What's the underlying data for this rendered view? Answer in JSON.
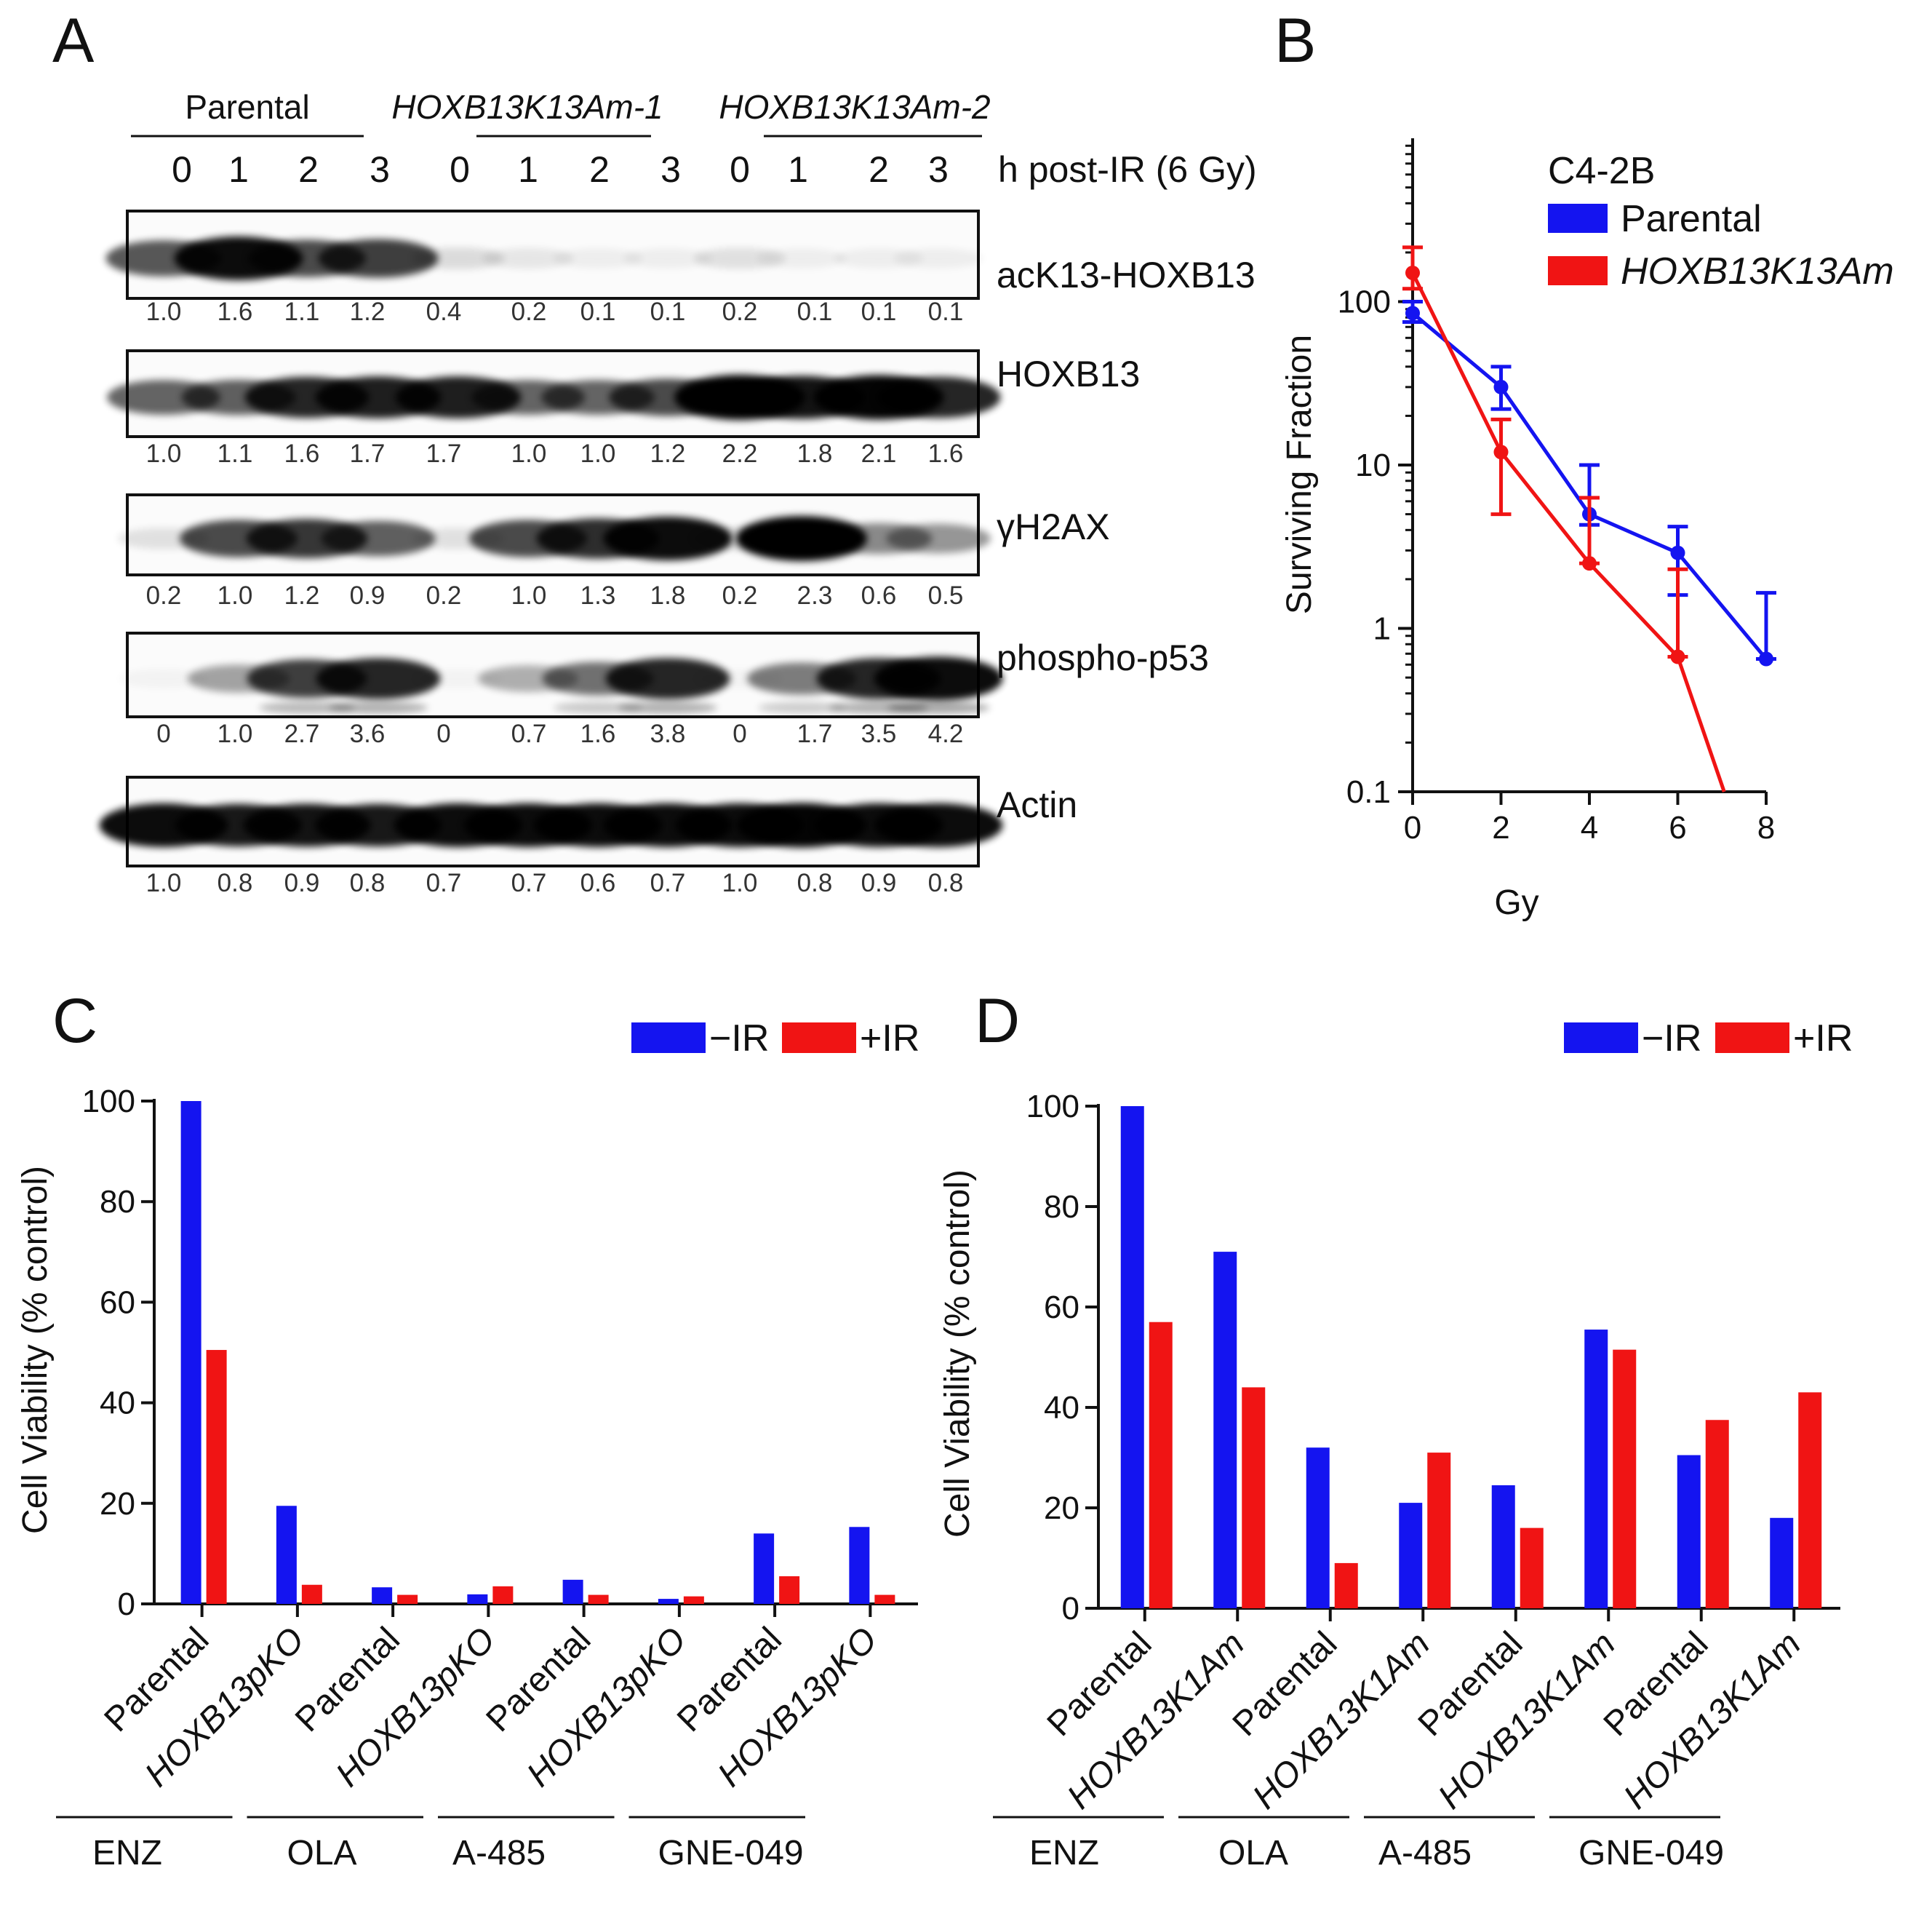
{
  "panels": {
    "a": "A",
    "b": "B",
    "c": "C",
    "d": "D"
  },
  "blot": {
    "groups": [
      "Parental",
      "HOXB13K13Am-1",
      "HOXB13K13Am-2"
    ],
    "timepoints": [
      "0",
      "1",
      "2",
      "3",
      "0",
      "1",
      "2",
      "3",
      "0",
      "1",
      "2",
      "3"
    ],
    "time_label": "h post-IR (6 Gy)",
    "rows": [
      {
        "marker": "acK13-HOXB13",
        "quant": [
          "1.0",
          "1.6",
          "1.1",
          "1.2",
          "0.4",
          "0.2",
          "0.1",
          "0.1",
          "0.2",
          "0.1",
          "0.1",
          "0.1"
        ],
        "intensity": [
          0.65,
          0.95,
          0.7,
          0.75,
          0.12,
          0.08,
          0.05,
          0.05,
          0.1,
          0.05,
          0.05,
          0.05
        ]
      },
      {
        "marker": "HOXB13",
        "quant": [
          "1.0",
          "1.1",
          "1.6",
          "1.7",
          "1.7",
          "1.0",
          "1.0",
          "1.2",
          "2.2",
          "1.8",
          "2.1",
          "1.6"
        ],
        "intensity": [
          0.6,
          0.62,
          0.85,
          0.88,
          0.88,
          0.6,
          0.6,
          0.7,
          1.0,
          0.92,
          0.98,
          0.85
        ]
      },
      {
        "marker": "γH2AX",
        "quant": [
          "0.2",
          "1.0",
          "1.2",
          "0.9",
          "0.2",
          "1.0",
          "1.3",
          "1.8",
          "0.2",
          "2.3",
          "0.6",
          "0.5"
        ],
        "intensity": [
          0.1,
          0.7,
          0.78,
          0.62,
          0.1,
          0.7,
          0.82,
          0.95,
          0.15,
          1.0,
          0.45,
          0.4
        ]
      },
      {
        "marker": "phospho-p53",
        "quant": [
          "0",
          "1.0",
          "2.7",
          "3.6",
          "0",
          "0.7",
          "1.6",
          "3.8",
          "0",
          "1.7",
          "3.5",
          "4.2"
        ],
        "intensity": [
          0.03,
          0.35,
          0.75,
          0.85,
          0.02,
          0.3,
          0.55,
          0.85,
          0.02,
          0.5,
          0.85,
          0.95
        ]
      },
      {
        "marker": "Actin",
        "quant": [
          "1.0",
          "0.8",
          "0.9",
          "0.8",
          "0.7",
          "0.7",
          "0.6",
          "0.7",
          "1.0",
          "0.8",
          "0.9",
          "0.8"
        ],
        "intensity": [
          0.95,
          0.9,
          0.92,
          0.9,
          0.95,
          0.95,
          0.95,
          0.95,
          0.95,
          0.98,
          0.95,
          0.95
        ]
      }
    ]
  },
  "chart_data": [
    {
      "panel": "B",
      "type": "line",
      "title": "C4-2B",
      "xlabel": "Gy",
      "ylabel": "Surviving Fraction",
      "yscale": "log",
      "xlim": [
        0,
        8
      ],
      "ylim": [
        0.1,
        1000
      ],
      "xticks": [
        "0",
        "2",
        "4",
        "6",
        "8"
      ],
      "yticks": [
        "0.1",
        "1",
        "10",
        "100"
      ],
      "series": [
        {
          "name": "Parental",
          "color": "#1414f0",
          "x": [
            0,
            2,
            4,
            6,
            8
          ],
          "y": [
            85,
            30,
            5,
            2.9,
            0.65
          ],
          "err_up": [
            100,
            40,
            10,
            4.2,
            1.65
          ],
          "err_down": [
            75,
            22,
            4.3,
            1.6,
            0.65
          ]
        },
        {
          "name": "HOXB13K13Am",
          "color": "#f01414",
          "x": [
            0,
            2,
            4,
            6,
            7.05
          ],
          "y": [
            150,
            12,
            2.5,
            0.67,
            0.1
          ],
          "err_up": [
            215,
            19,
            6.3,
            2.3,
            null
          ],
          "err_down": [
            120,
            5,
            2.5,
            0.67,
            null
          ]
        }
      ]
    },
    {
      "panel": "C",
      "type": "bar",
      "ylabel": "Cell Viability (% control)",
      "ylim": [
        0,
        100
      ],
      "yticks": [
        "0",
        "20",
        "40",
        "60",
        "80",
        "100"
      ],
      "categories": [
        "Parental",
        "HOXB13pKO",
        "Parental",
        "HOXB13pKO",
        "Parental",
        "HOXB13pKO",
        "Parental",
        "HOXB13pKO"
      ],
      "groups": [
        "ENZ",
        "OLA",
        "A-485",
        "GNE-049"
      ],
      "series": [
        {
          "name": "−IR",
          "color": "#1414f0",
          "values": [
            100,
            19.5,
            3.3,
            1.9,
            4.8,
            1.0,
            14.0,
            15.3
          ]
        },
        {
          "name": "+IR",
          "color": "#f01414",
          "values": [
            50.5,
            3.8,
            1.8,
            3.5,
            1.8,
            1.5,
            5.5,
            1.8
          ]
        }
      ]
    },
    {
      "panel": "D",
      "type": "bar",
      "ylabel": "Cell Viability (% control)",
      "ylim": [
        0,
        100
      ],
      "yticks": [
        "0",
        "20",
        "40",
        "60",
        "80",
        "100"
      ],
      "categories": [
        "Parental",
        "HOXB13K1Am",
        "Parental",
        "HOXB13K1Am",
        "Parental",
        "HOXB13K1Am",
        "Parental",
        "HOXB13K1Am"
      ],
      "groups": [
        "ENZ",
        "OLA",
        "A-485",
        "GNE-049"
      ],
      "series": [
        {
          "name": "−IR",
          "color": "#1414f0",
          "values": [
            100,
            71,
            32,
            21,
            24.5,
            55.5,
            30.5,
            18
          ]
        },
        {
          "name": "+IR",
          "color": "#f01414",
          "values": [
            57,
            44,
            9,
            31,
            16,
            51.5,
            37.5,
            43
          ]
        }
      ]
    }
  ]
}
